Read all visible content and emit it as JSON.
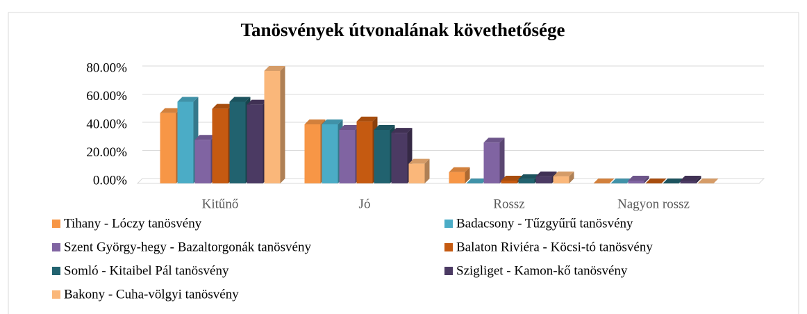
{
  "chart_data": {
    "type": "bar3d",
    "title": "Tanösvények útvonalának követhetősége",
    "categories": [
      "Kitűnő",
      "Jó",
      "Rossz",
      "Nagyon rossz"
    ],
    "series": [
      {
        "name": "Tihany - Lóczy tanösvény",
        "color": "#f79646",
        "values": [
          50,
          42,
          8,
          0
        ]
      },
      {
        "name": "Badacsony - Tűzgyűrű tanösvény",
        "color": "#4bacc6",
        "values": [
          58,
          42,
          0,
          0
        ]
      },
      {
        "name": "Szent György-hegy - Bazaltorgonák tanösvény",
        "color": "#8064a2",
        "values": [
          31,
          38,
          29,
          2
        ]
      },
      {
        "name": "Balaton Riviéra - Köcsi-tó tanösvény",
        "color": "#c55a11",
        "values": [
          53,
          44,
          2,
          0
        ]
      },
      {
        "name": "Somló - Kitaibel Pál tanösvény",
        "color": "#21626f",
        "values": [
          58,
          38,
          3,
          0
        ]
      },
      {
        "name": "Szigliget - Kamon-kő tanösvény",
        "color": "#4b3a63",
        "values": [
          56,
          36,
          5,
          2
        ]
      },
      {
        "name": "Bakony - Cuha-völgyi tanösvény",
        "color": "#fab77a",
        "values": [
          80,
          14,
          5,
          0
        ]
      }
    ],
    "ylim": [
      0,
      80
    ],
    "yticks": [
      {
        "value": 0,
        "label": "0.00%"
      },
      {
        "value": 20,
        "label": "20.00%"
      },
      {
        "value": 40,
        "label": "40.00%"
      },
      {
        "value": 60,
        "label": "60.00%"
      },
      {
        "value": 80,
        "label": "80.00%"
      }
    ],
    "grid": true,
    "legend": "bottom"
  }
}
